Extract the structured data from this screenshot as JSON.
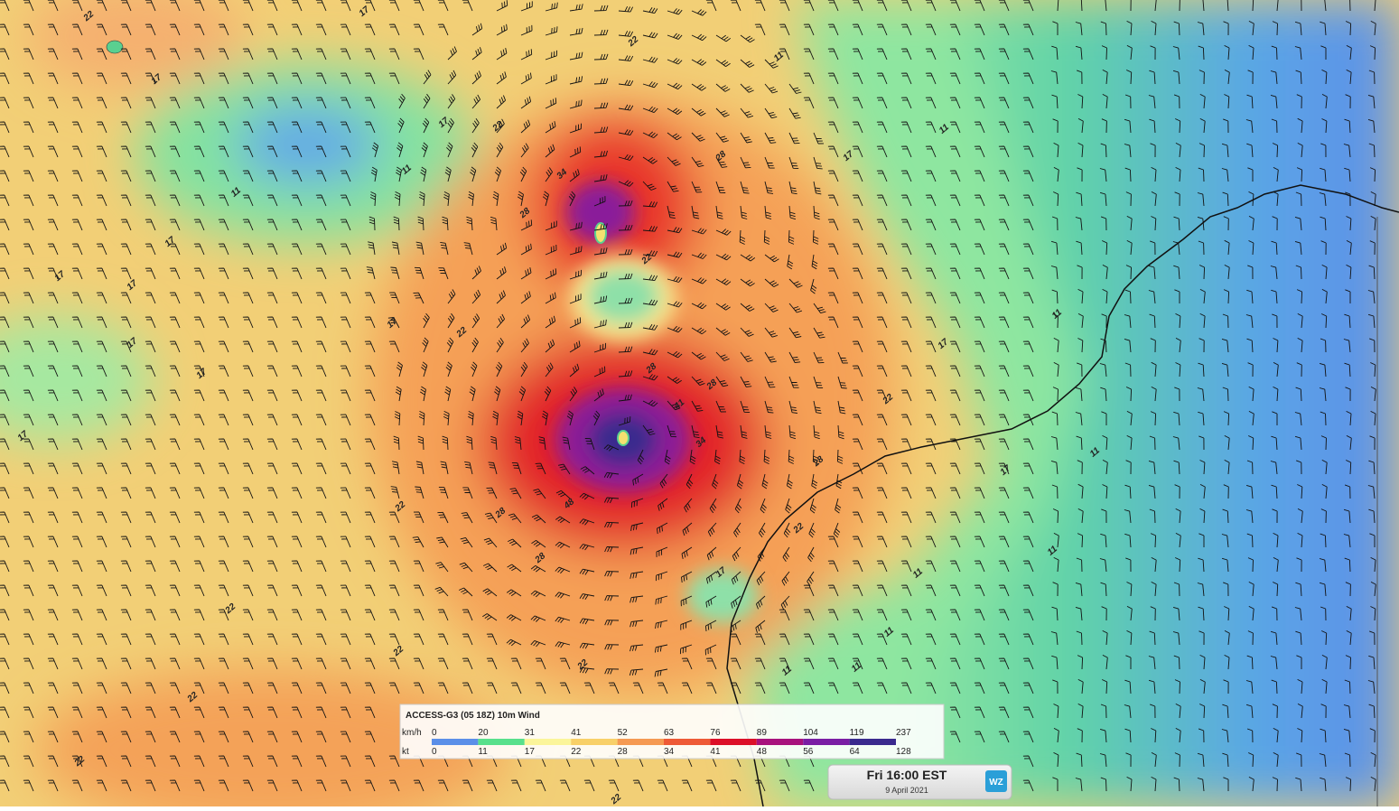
{
  "legend": {
    "title": "ACCESS-G3 (05 18Z) 10m Wind",
    "units": [
      "km/h",
      "kt"
    ],
    "kmh": [
      "0",
      "20",
      "31",
      "41",
      "52",
      "63",
      "76",
      "89",
      "104",
      "119",
      "237"
    ],
    "kt": [
      "0",
      "11",
      "17",
      "22",
      "28",
      "34",
      "41",
      "48",
      "56",
      "64",
      "128"
    ],
    "colors": [
      "#5b8fe8",
      "#58e08c",
      "#fbf59a",
      "#f8d068",
      "#f59a52",
      "#ee5a36",
      "#dc1028",
      "#a8127c",
      "#7a1ea4",
      "#3a2a8e"
    ]
  },
  "time": {
    "label": "Fri 16:00 EST",
    "date": "9 April 2021",
    "logo": "WZ"
  },
  "contour_labels": [
    "22",
    "17",
    "17",
    "17",
    "22",
    "11",
    "11",
    "17",
    "17",
    "17",
    "17",
    "17",
    "17",
    "17",
    "22",
    "34",
    "28",
    "22",
    "28",
    "28",
    "28",
    "17",
    "11",
    "11",
    "22",
    "22",
    "17",
    "11",
    "17",
    "11",
    "22",
    "28",
    "28",
    "22",
    "17",
    "11",
    "11",
    "11",
    "11",
    "22",
    "22",
    "22",
    "22",
    "22",
    "22",
    "11",
    "28",
    "34",
    "48",
    "41"
  ]
}
